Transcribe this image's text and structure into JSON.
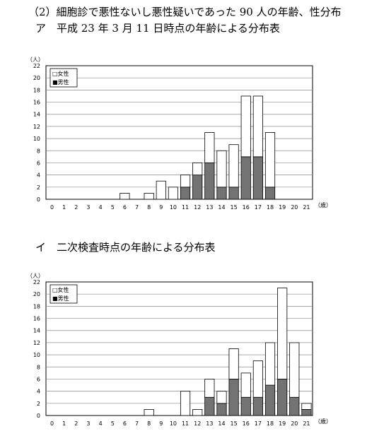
{
  "headings": {
    "main": "（2）細胞診で悪性ないし悪性疑いであった 90 人の年齢、性分布",
    "a": "ア　平成 23 年 3 月 11 日時点の年齢による分布表",
    "b": "イ　二次検査時点の年齢による分布表"
  },
  "colors": {
    "female": "#ffffff",
    "male": "#737373",
    "border": "#000000",
    "grid": "#8c8c8c"
  },
  "chart_data": [
    {
      "type": "bar",
      "stacked": true,
      "y_unit_label": "（人）",
      "x_unit_label": "（歳）",
      "legend": [
        "□女性",
        "■男性"
      ],
      "legend_position": "top-left",
      "grid": true,
      "ylim": [
        0,
        22
      ],
      "y_ticks": [
        0,
        2,
        4,
        6,
        8,
        10,
        12,
        14,
        16,
        18,
        20,
        22
      ],
      "categories": [
        "0",
        "1",
        "2",
        "3",
        "4",
        "5",
        "6",
        "7",
        "8",
        "9",
        "10",
        "11",
        "12",
        "13",
        "14",
        "15",
        "16",
        "17",
        "18",
        "19",
        "20",
        "21"
      ],
      "series": [
        {
          "name": "女性",
          "values": [
            0,
            0,
            0,
            0,
            0,
            0,
            1,
            0,
            1,
            3,
            2,
            2,
            2,
            5,
            6,
            7,
            10,
            10,
            9,
            0,
            0,
            0
          ]
        },
        {
          "name": "男性",
          "values": [
            0,
            0,
            0,
            0,
            0,
            0,
            0,
            0,
            0,
            0,
            0,
            2,
            4,
            6,
            2,
            2,
            7,
            7,
            2,
            0,
            0,
            0
          ]
        }
      ]
    },
    {
      "type": "bar",
      "stacked": true,
      "y_unit_label": "（人）",
      "x_unit_label": "（歳）",
      "legend": [
        "□女性",
        "■男性"
      ],
      "legend_position": "top-left",
      "grid": true,
      "ylim": [
        0,
        22
      ],
      "y_ticks": [
        0,
        2,
        4,
        6,
        8,
        10,
        12,
        14,
        16,
        18,
        20,
        22
      ],
      "categories": [
        "0",
        "1",
        "2",
        "3",
        "4",
        "5",
        "6",
        "7",
        "8",
        "9",
        "10",
        "11",
        "12",
        "13",
        "14",
        "15",
        "16",
        "17",
        "18",
        "19",
        "20",
        "21"
      ],
      "series": [
        {
          "name": "女性",
          "values": [
            0,
            0,
            0,
            0,
            0,
            0,
            0,
            0,
            1,
            0,
            0,
            4,
            1,
            3,
            2,
            5,
            4,
            6,
            7,
            15,
            9,
            1
          ]
        },
        {
          "name": "男性",
          "values": [
            0,
            0,
            0,
            0,
            0,
            0,
            0,
            0,
            0,
            0,
            0,
            0,
            0,
            3,
            2,
            6,
            3,
            3,
            5,
            6,
            3,
            1
          ]
        }
      ]
    }
  ]
}
